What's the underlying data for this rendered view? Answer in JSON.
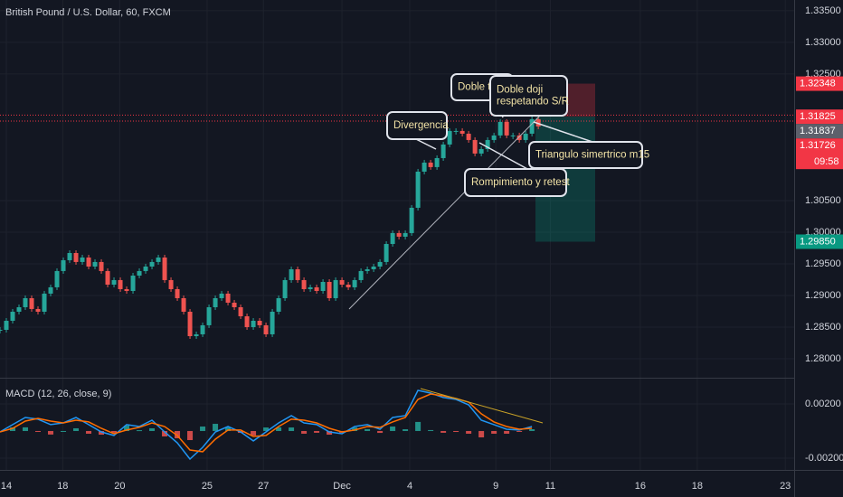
{
  "header": {
    "title": "British Pound / U.S. Dollar, 60, FXCM"
  },
  "chart_data": [
    {
      "type": "candlestick",
      "close": [
        1.28457,
        1.286,
        1.28743,
        1.28814,
        1.28957,
        1.28786,
        1.28743,
        1.29029,
        1.29129,
        1.29386,
        1.29557,
        1.29671,
        1.29529,
        1.296,
        1.29457,
        1.29529,
        1.29386,
        1.29171,
        1.29243,
        1.291,
        1.29071,
        1.29314,
        1.29386,
        1.29457,
        1.29529,
        1.296,
        1.29243,
        1.291,
        1.28957,
        1.28743,
        1.28357,
        1.28386,
        1.28529,
        1.28814,
        1.28957,
        1.29029,
        1.28886,
        1.28814,
        1.28671,
        1.285,
        1.286,
        1.28529,
        1.28386,
        1.28743,
        1.28957,
        1.29243,
        1.29414,
        1.29243,
        1.291,
        1.29129,
        1.29071,
        1.29214,
        1.28957,
        1.29243,
        1.29171,
        1.29129,
        1.29243,
        1.29386,
        1.29414,
        1.29457,
        1.29529,
        1.29814,
        1.29986,
        1.29929,
        1.29986,
        1.30386,
        1.30957,
        1.311,
        1.31029,
        1.31171,
        1.31386,
        1.316,
        1.316,
        1.31557,
        1.31457,
        1.31243,
        1.31314,
        1.31457,
        1.31529,
        1.31743,
        1.31529,
        1.31529,
        1.31457,
        1.31557,
        1.31786,
        1.31671
      ],
      "up_color": "#26a69a",
      "down_color": "#ef5350",
      "xlim": [
        0,
        125.4
      ],
      "ylim": [
        1.277,
        1.3367
      ],
      "xticks": [
        {
          "value": 1,
          "label": "14"
        },
        {
          "value": 9.9,
          "label": "18"
        },
        {
          "value": 18.9,
          "label": "20"
        },
        {
          "value": 32.7,
          "label": "25"
        },
        {
          "value": 41.6,
          "label": "27"
        },
        {
          "value": 54,
          "label": "Dec"
        },
        {
          "value": 64.7,
          "label": "4"
        },
        {
          "value": 78.3,
          "label": "9"
        },
        {
          "value": 86.9,
          "label": "11"
        },
        {
          "value": 101.1,
          "label": "16"
        },
        {
          "value": 110.1,
          "label": "18"
        },
        {
          "value": 124,
          "label": "23"
        }
      ],
      "yticks": [
        {
          "value": 1.335,
          "label": "1.33500"
        },
        {
          "value": 1.33,
          "label": "1.33000"
        },
        {
          "value": 1.325,
          "label": "1.32500"
        },
        {
          "value": 1.305,
          "label": "1.30500"
        },
        {
          "value": 1.3,
          "label": "1.30000"
        },
        {
          "value": 1.295,
          "label": "1.29500"
        },
        {
          "value": 1.29,
          "label": "1.29000"
        },
        {
          "value": 1.285,
          "label": "1.28500"
        },
        {
          "value": 1.28,
          "label": "1.28000"
        }
      ],
      "grid": true,
      "price_labels": [
        {
          "value": 1.32348,
          "color": "#f23645"
        },
        {
          "value": 1.31825,
          "color": "#f23645"
        },
        {
          "value": 1.31837,
          "color": "#5d606b"
        },
        {
          "value": 1.31726,
          "color": "#f23645",
          "timer": "09:58"
        },
        {
          "value": {
            "value": 1.2985,
            "label": "1.29850"
          },
          "color": "#089981"
        }
      ],
      "hlines": [
        1.3185,
        1.31757
      ],
      "hline_color": "#f23645",
      "annotations": [
        {
          "lines": [
            "Divergencia"
          ]
        },
        {
          "lines": [
            "Doble techo"
          ]
        },
        {
          "lines": [
            "Doble doji",
            "respetando S/R"
          ]
        },
        {
          "lines": [
            "Triangulo simertrico m15"
          ]
        },
        {
          "lines": [
            "Rompimiento y retest"
          ]
        }
      ]
    },
    {
      "type": "line",
      "title": "MACD (12, 26, close, 9)",
      "x": [
        0,
        2,
        4,
        6,
        8,
        10,
        12,
        14,
        16,
        18,
        20,
        22,
        24,
        26,
        28,
        30,
        32,
        34,
        36,
        38,
        40,
        42,
        44,
        46,
        48,
        50,
        52,
        54,
        56,
        58,
        60,
        62,
        64,
        66,
        68,
        70,
        72,
        74,
        76,
        78,
        80,
        82,
        84
      ],
      "series": [
        {
          "name": "MACD",
          "color": "#2196f3",
          "values": [
            -7e-05,
            0.00047,
            0.001,
            0.00087,
            0.00047,
            0.0006,
            0.001,
            0.00047,
            -7e-05,
            -0.00033,
            0.00047,
            0.00033,
            0.0008,
            -7e-05,
            -0.00087,
            -0.00207,
            -0.0012,
            -7e-05,
            0.00033,
            -7e-05,
            -0.00073,
            -7e-05,
            0.0006,
            0.00113,
            0.0006,
            0.00047,
            -7e-05,
            -0.0002,
            0.00033,
            0.00047,
            0.00013,
            0.001,
            0.00113,
            0.003,
            0.0028,
            0.00247,
            0.00233,
            0.00193,
            0.0008,
            0.00047,
            0.00013,
            7e-05,
            0.00033
          ]
        },
        {
          "name": "Signal",
          "color": "#ff6d00",
          "values": [
            -7e-05,
            0.0002,
            0.00073,
            0.00093,
            0.00073,
            0.0006,
            0.0008,
            0.00067,
            0.0002,
            -0.0002,
            7e-05,
            0.00027,
            0.0006,
            0.00033,
            -0.00033,
            -0.0014,
            -0.00153,
            -0.0006,
            7e-05,
            7e-05,
            -0.0004,
            -0.00033,
            0.00033,
            0.00087,
            0.0008,
            0.0006,
            0.0002,
            -7e-05,
            7e-05,
            0.00033,
            0.00027,
            0.00067,
            0.001,
            0.00233,
            0.00273,
            0.0026,
            0.0024,
            0.00213,
            0.00127,
            0.00067,
            0.00033,
            0.00013,
            0.0002
          ]
        }
      ],
      "histogram": [
        0,
        0.00027,
        0.00027,
        -6e-05,
        -0.00026,
        0,
        0.0002,
        -0.0002,
        -0.00027,
        -0.00013,
        0.0004,
        6e-05,
        0.0002,
        -0.0004,
        -0.00054,
        -0.00067,
        0.00033,
        0.00053,
        0.00026,
        -0.00014,
        -0.00033,
        0.00026,
        0.00027,
        0.00026,
        -0.0002,
        -0.00013,
        -0.00027,
        -0.00013,
        0.00026,
        0.00014,
        -0.00014,
        0.00033,
        0.00013,
        0.00067,
        7e-05,
        -0.00013,
        -7e-05,
        -0.0002,
        -0.00047,
        -0.0002,
        -0.0002,
        -6e-05,
        0.00013
      ],
      "histogram_colors": [
        "#26a69a",
        "#ef5350"
      ],
      "xlim": [
        0,
        125.4
      ],
      "ylim": [
        -0.00287,
        0.0038
      ],
      "yticks": [
        {
          "value": 0.002,
          "label": "0.00200"
        },
        {
          "value": -0.002,
          "label": "-0.00200"
        }
      ]
    }
  ]
}
